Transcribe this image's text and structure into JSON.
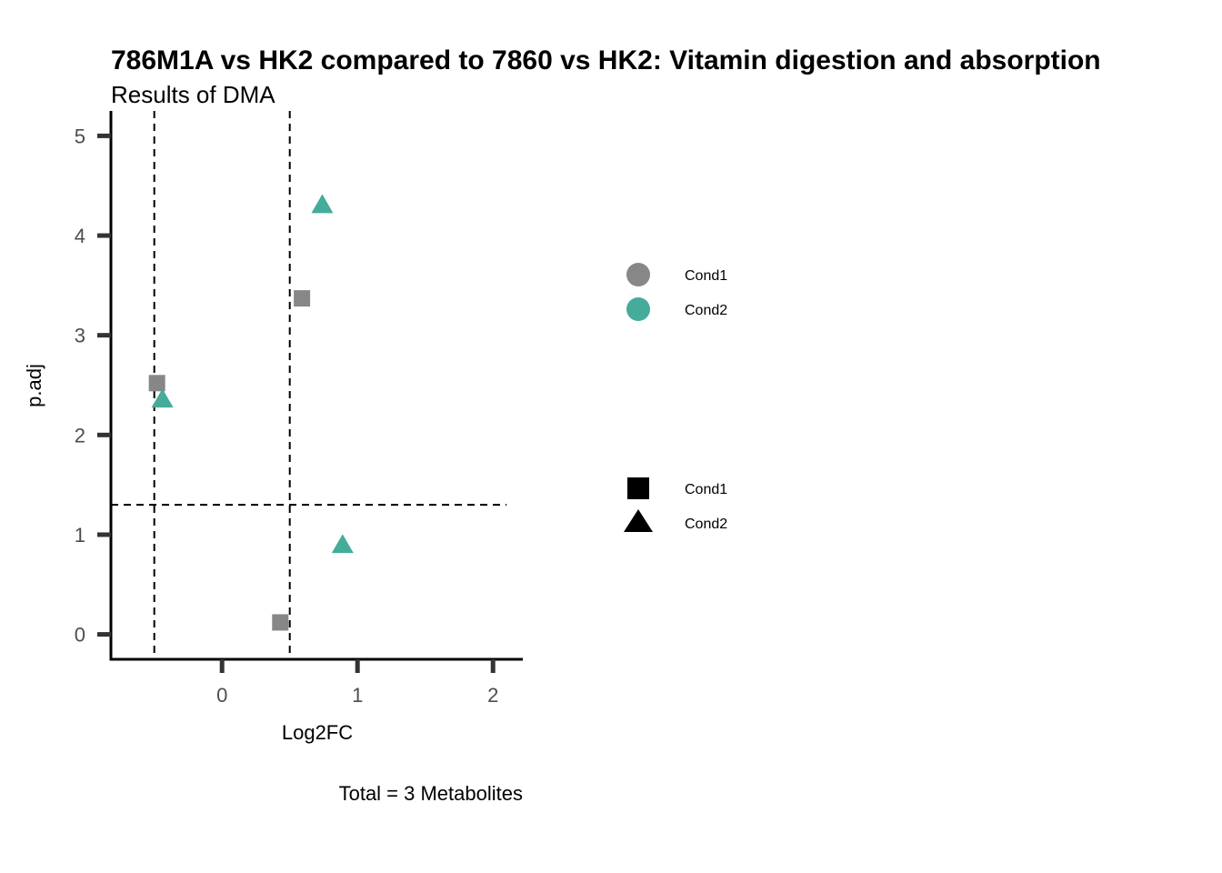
{
  "chart_data": {
    "type": "scatter",
    "title": "786M1A vs HK2 compared to 7860 vs HK2: Vitamin digestion and absorption",
    "subtitle": "Results of DMA",
    "xlabel": "Log2FC",
    "ylabel": "p.adj",
    "caption": "Total = 3 Metabolites",
    "xlim": [
      -0.82,
      2.22
    ],
    "ylim": [
      -0.25,
      5.25
    ],
    "x_ticks": [
      0,
      1,
      2
    ],
    "y_ticks": [
      0,
      1,
      2,
      3,
      4,
      5
    ],
    "grid": false,
    "thresholds": {
      "vertical": [
        -0.5,
        0.5
      ],
      "horizontal": [
        1.3
      ]
    },
    "colors": {
      "Cond1": "#878787",
      "Cond2": "#45ab9b",
      "threshold_line": "#000000",
      "axis": "#000000",
      "tick": "#333333"
    },
    "color_legend": [
      {
        "label": "Cond1",
        "color": "#878787"
      },
      {
        "label": "Cond2",
        "color": "#45ab9b"
      }
    ],
    "shape_legend": [
      {
        "label": "Cond1",
        "shape": "square"
      },
      {
        "label": "Cond2",
        "shape": "triangle"
      }
    ],
    "points": [
      {
        "x": 0.59,
        "y": 3.37,
        "color_group": "Cond1",
        "shape_group": "Cond1"
      },
      {
        "x": -0.48,
        "y": 2.52,
        "color_group": "Cond1",
        "shape_group": "Cond1"
      },
      {
        "x": 0.43,
        "y": 0.12,
        "color_group": "Cond1",
        "shape_group": "Cond1"
      },
      {
        "x": 0.74,
        "y": 4.29,
        "color_group": "Cond2",
        "shape_group": "Cond2"
      },
      {
        "x": -0.44,
        "y": 2.34,
        "color_group": "Cond2",
        "shape_group": "Cond2"
      },
      {
        "x": 0.89,
        "y": 0.88,
        "color_group": "Cond2",
        "shape_group": "Cond2"
      }
    ]
  }
}
